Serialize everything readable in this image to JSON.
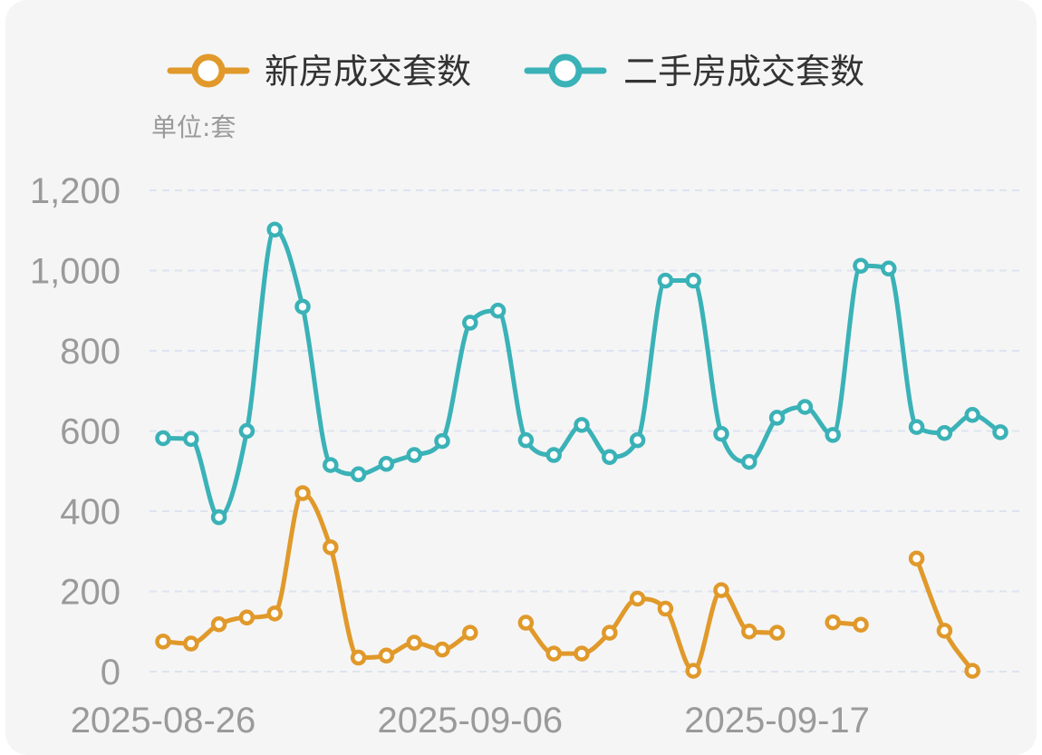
{
  "chart_data": {
    "type": "line",
    "unit_label": "单位:套",
    "legend_position": "top",
    "colors": {
      "new": "#e0992a",
      "second": "#3ab2b7",
      "grid": "#dde3f0",
      "tick": "#9a9a9a",
      "background": "#f5f5f5"
    },
    "ylim": [
      0,
      1200
    ],
    "y_ticks": [
      0,
      200,
      400,
      600,
      800,
      1000,
      1200
    ],
    "y_tick_labels": [
      "0",
      "200",
      "400",
      "600",
      "800",
      "1,000",
      "1,200"
    ],
    "x_tick_labels": [
      {
        "index": 0,
        "label": "2025-08-26"
      },
      {
        "index": 11,
        "label": "2025-09-06"
      },
      {
        "index": 22,
        "label": "2025-09-17"
      }
    ],
    "x": [
      "2025-08-26",
      "2025-08-27",
      "2025-08-28",
      "2025-08-29",
      "2025-08-30",
      "2025-08-31",
      "2025-09-01",
      "2025-09-02",
      "2025-09-03",
      "2025-09-04",
      "2025-09-05",
      "2025-09-06",
      "2025-09-07",
      "2025-09-08",
      "2025-09-09",
      "2025-09-10",
      "2025-09-11",
      "2025-09-12",
      "2025-09-13",
      "2025-09-14",
      "2025-09-15",
      "2025-09-16",
      "2025-09-17",
      "2025-09-18",
      "2025-09-19",
      "2025-09-20",
      "2025-09-21",
      "2025-09-22",
      "2025-09-23",
      "2025-09-24",
      "2025-09-25",
      "2025-09-26",
      "2025-09-27",
      "2025-09-28",
      "2025-09-29",
      "2025-09-30"
    ],
    "series": [
      {
        "key": "new",
        "name": "新房成交套数",
        "values": [
          75,
          70,
          118,
          135,
          145,
          445,
          310,
          35,
          40,
          72,
          55,
          97,
          null,
          122,
          45,
          45,
          97,
          182,
          157,
          2,
          203,
          100,
          97,
          null,
          123,
          117,
          null,
          282,
          102,
          2,
          null,
          null,
          null,
          null,
          null,
          null
        ]
      },
      {
        "key": "second",
        "name": "二手房成交套数",
        "values": [
          582,
          580,
          385,
          600,
          1102,
          910,
          515,
          492,
          518,
          540,
          575,
          870,
          900,
          577,
          540,
          615,
          535,
          577,
          975,
          975,
          593,
          523,
          633,
          660,
          590,
          1012,
          1005,
          610,
          595,
          640,
          597,
          null,
          null,
          null,
          null,
          null
        ]
      }
    ]
  }
}
